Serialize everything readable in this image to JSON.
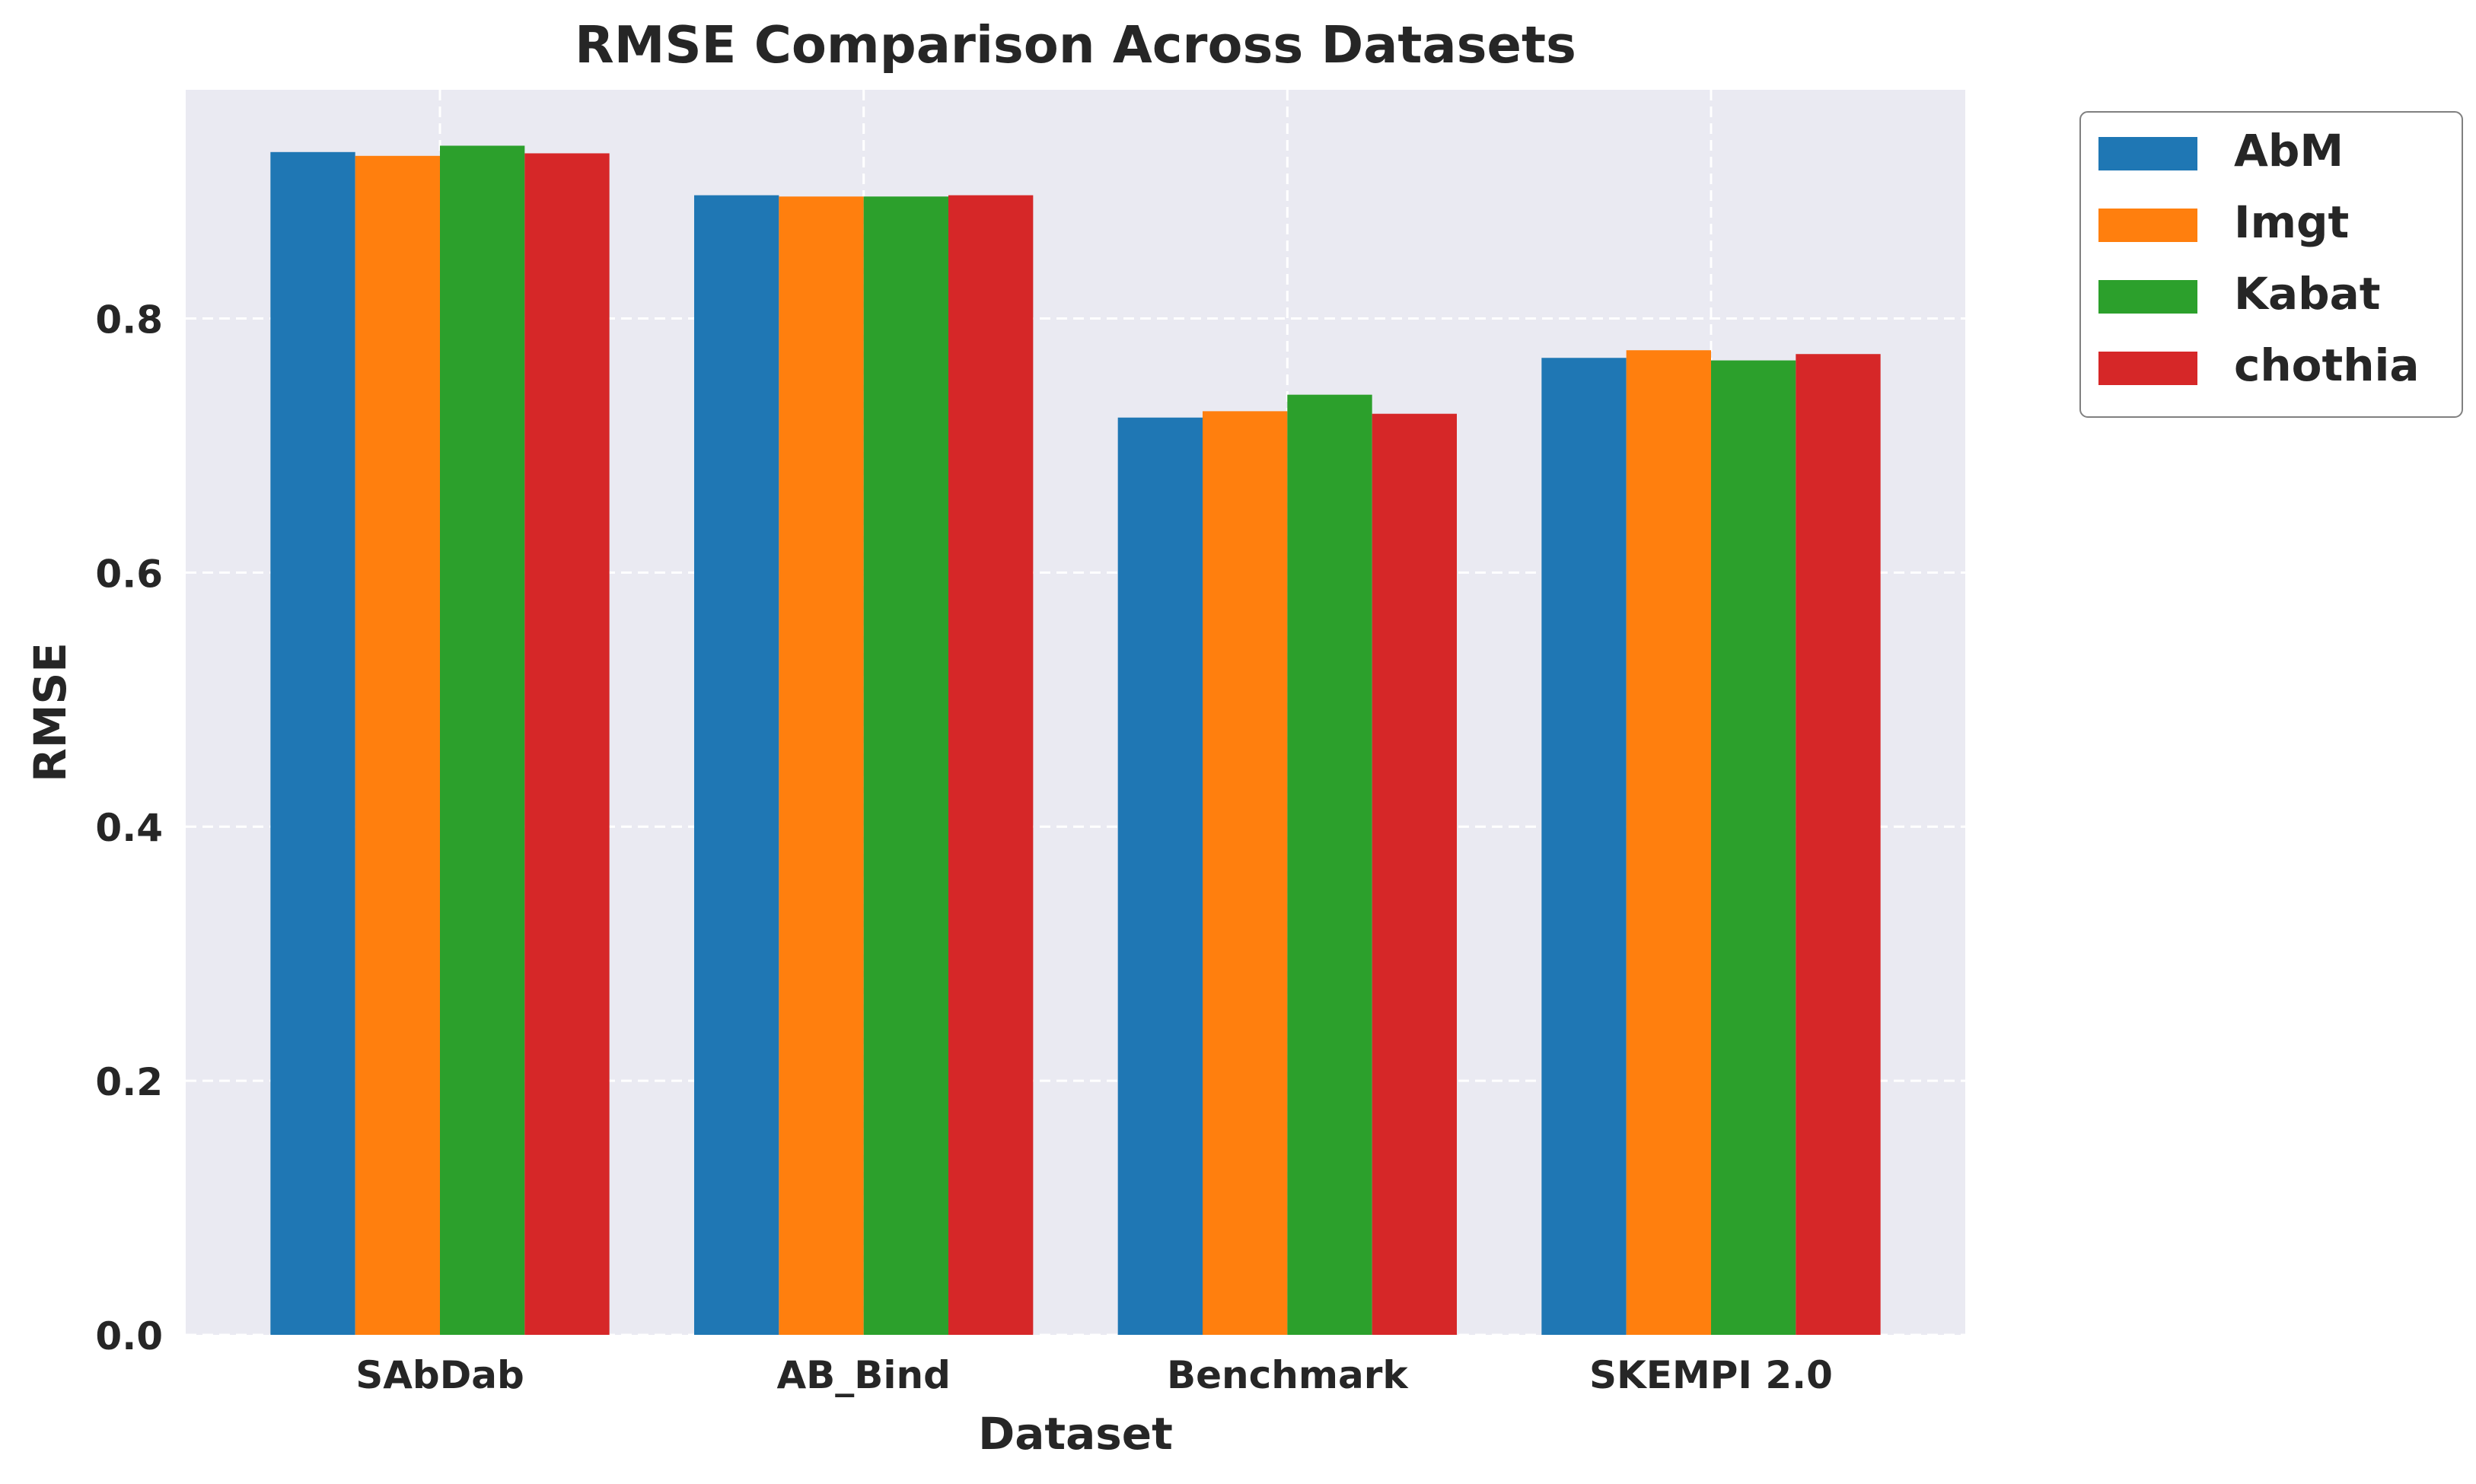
{
  "chart_data": {
    "type": "bar",
    "title": "RMSE Comparison Across Datasets",
    "xlabel": "Dataset",
    "ylabel": "RMSE",
    "ylim": [
      0,
      0.98
    ],
    "yticks": [
      0.0,
      0.2,
      0.4,
      0.6,
      0.8
    ],
    "ytick_labels": [
      "0.0",
      "0.2",
      "0.4",
      "0.6",
      "0.8"
    ],
    "categories": [
      "SAbDab",
      "AB_Bind",
      "Benchmark",
      "SKEMPI 2.0"
    ],
    "series": [
      {
        "name": "AbM",
        "color": "#1f77b4",
        "values": [
          0.931,
          0.897,
          0.722,
          0.769
        ]
      },
      {
        "name": "Imgt",
        "color": "#ff7f0e",
        "values": [
          0.928,
          0.896,
          0.727,
          0.775
        ]
      },
      {
        "name": "Kabat",
        "color": "#2ca02c",
        "values": [
          0.936,
          0.896,
          0.74,
          0.767
        ]
      },
      {
        "name": "chothia",
        "color": "#d62728",
        "values": [
          0.93,
          0.897,
          0.725,
          0.772
        ]
      }
    ],
    "grid": true,
    "legend_position": "outside upper right",
    "colors": {
      "plot_background": "#eaeaf2",
      "grid": "#ffffff"
    }
  }
}
